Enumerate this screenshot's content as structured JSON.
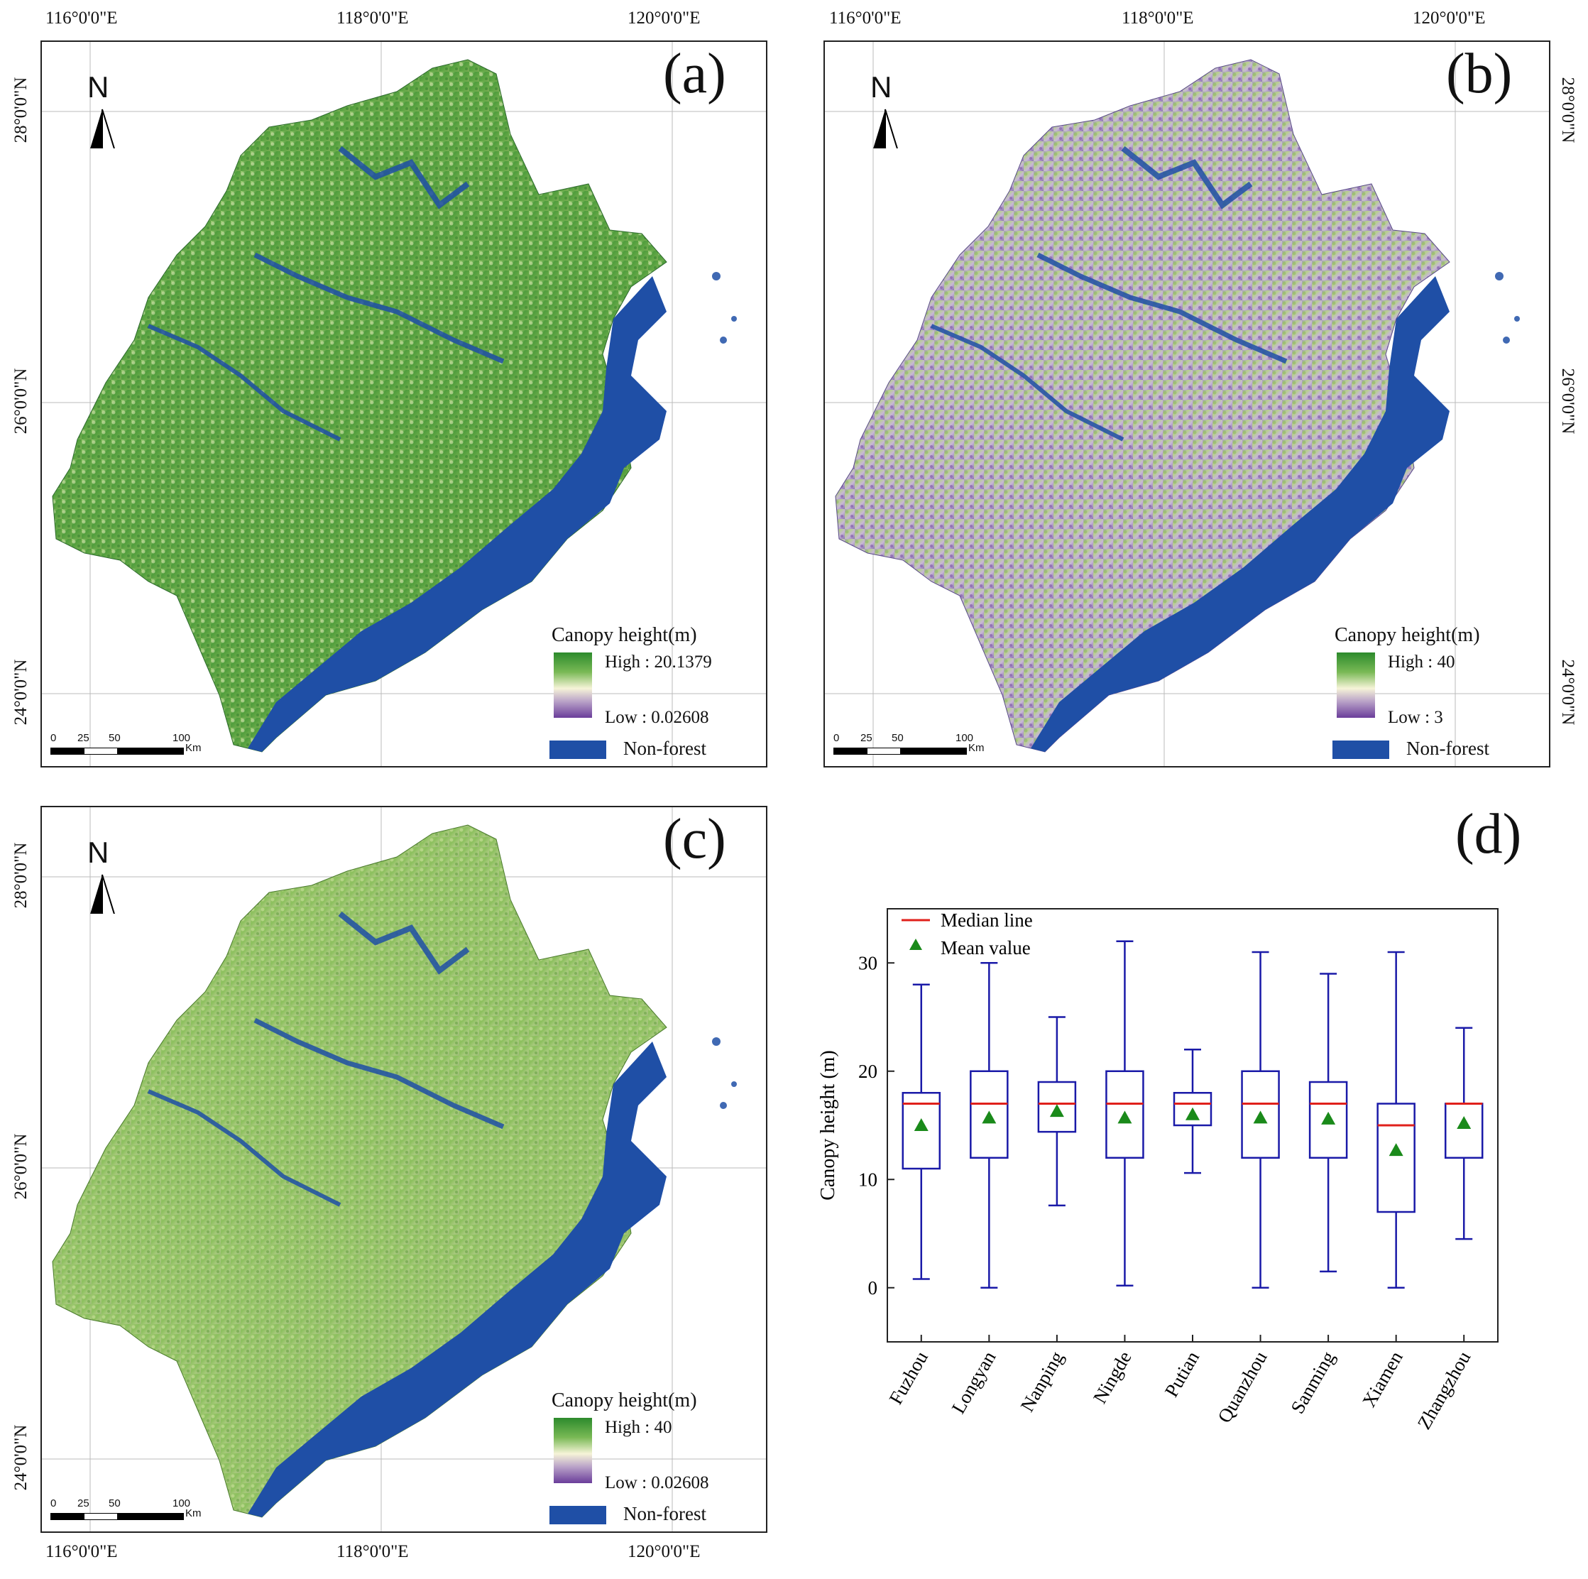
{
  "panels": {
    "a": {
      "letter": "(a)",
      "legend_title": "Canopy height(m)",
      "high": "High : 20.1379",
      "low": "Low : 0.02608",
      "nonforest": "Non-forest"
    },
    "b": {
      "letter": "(b)",
      "legend_title": "Canopy height(m)",
      "high": "High : 40",
      "low": "Low : 3",
      "nonforest": "Non-forest"
    },
    "c": {
      "letter": "(c)",
      "legend_title": "Canopy height(m)",
      "high": "High : 40",
      "low": "Low : 0.02608",
      "nonforest": "Non-forest"
    },
    "d": {
      "letter": "(d)"
    }
  },
  "map_common": {
    "north_label": "N",
    "lon_labels": [
      "116°0'0\"E",
      "118°0'0\"E",
      "120°0'0\"E"
    ],
    "lat_labels": [
      "28°0'0\"N",
      "26°0'0\"N",
      "24°0'0\"N"
    ],
    "scale_labels": [
      "0",
      "25",
      "50",
      "100"
    ],
    "scale_unit": "Km"
  },
  "colors": {
    "nonforest": "#1f4fa6",
    "high": "#2c8a2c",
    "mid": "#f6f4d8",
    "low": "#6a3d9a",
    "box_line": "#1a1aa8",
    "median_line": "#e0201b",
    "mean_marker": "#1a8a1a"
  },
  "chart_data": {
    "type": "box",
    "ylabel": "Canopy height (m)",
    "ylim": [
      -5,
      35
    ],
    "yticks": [
      0,
      10,
      20,
      30
    ],
    "legend": [
      {
        "label": "Median line"
      },
      {
        "label": "Mean value"
      }
    ],
    "legend_position": "top-left",
    "categories": [
      "Fuzhou",
      "Longyan",
      "Nanping",
      "Ningde",
      "Putian",
      "Quanzhou",
      "Sanming",
      "Xiamen",
      "Zhangzhou"
    ],
    "boxes": [
      {
        "min": 0.8,
        "q1": 11,
        "median": 17,
        "q3": 18,
        "max": 28,
        "mean": 15
      },
      {
        "min": 0,
        "q1": 12,
        "median": 17,
        "q3": 20,
        "max": 30,
        "mean": 15.7
      },
      {
        "min": 7.6,
        "q1": 14.4,
        "median": 17,
        "q3": 19,
        "max": 25,
        "mean": 16.3
      },
      {
        "min": 0.2,
        "q1": 12,
        "median": 17,
        "q3": 20,
        "max": 32,
        "mean": 15.7
      },
      {
        "min": 10.6,
        "q1": 15,
        "median": 17,
        "q3": 18,
        "max": 22,
        "mean": 16
      },
      {
        "min": 0,
        "q1": 12,
        "median": 17,
        "q3": 20,
        "max": 31,
        "mean": 15.7
      },
      {
        "min": 1.5,
        "q1": 12,
        "median": 17,
        "q3": 19,
        "max": 29,
        "mean": 15.6
      },
      {
        "min": 0,
        "q1": 7,
        "median": 15,
        "q3": 17,
        "max": 31,
        "mean": 12.7
      },
      {
        "min": 4.5,
        "q1": 12,
        "median": 17,
        "q3": 17,
        "max": 24,
        "mean": 15.2
      }
    ]
  }
}
